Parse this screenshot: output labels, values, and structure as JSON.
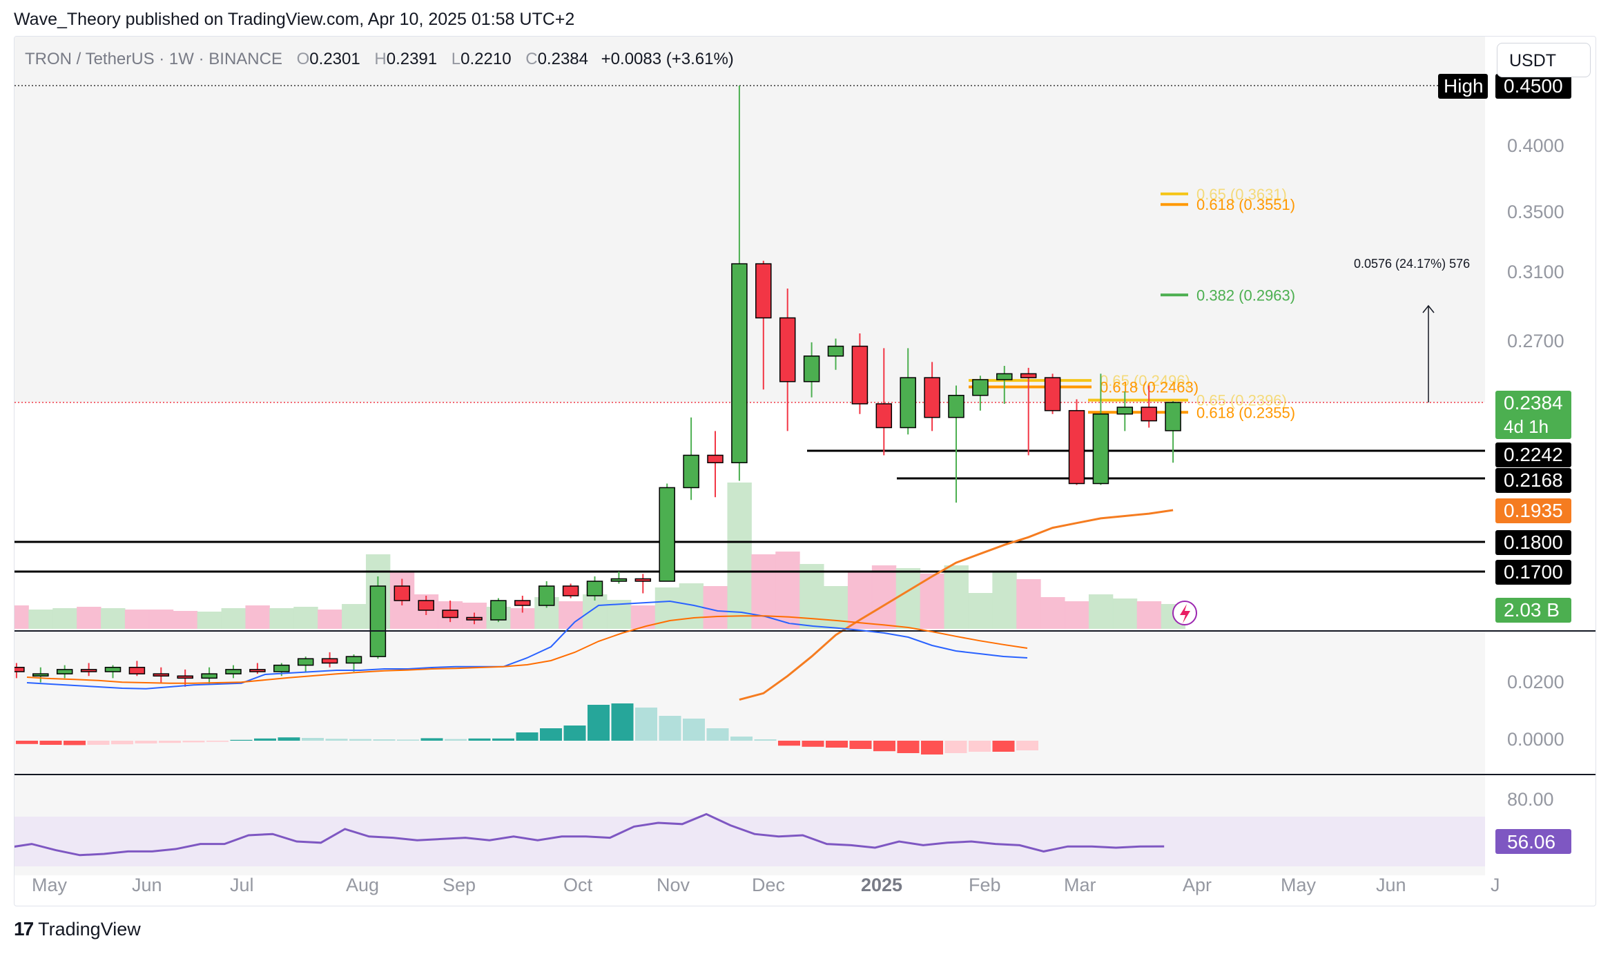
{
  "header": {
    "publisher_line": "Wave_Theory published on TradingView.com, Apr 10, 2025 01:58 UTC+2"
  },
  "symbol": {
    "name": "TRON / TetherUS · 1W · BINANCE",
    "o_label": "O",
    "o": "0.2301",
    "h_label": "H",
    "h": "0.2391",
    "l_label": "L",
    "l": "0.2210",
    "c_label": "C",
    "c": "0.2384",
    "change": "+0.0083 (+3.61%)"
  },
  "currency_button": "USDT",
  "footer": {
    "brand": "TradingView",
    "logo_mark": "17"
  },
  "colors": {
    "up": "#4caf50",
    "down": "#f23645",
    "ema": "#f57c20",
    "macd": "#2962ff",
    "signal": "#ff6d00",
    "rsi": "#7e57c2",
    "fib_gold": "#f5c518",
    "fib_orange": "#ff9800",
    "fib_green": "#4caf50",
    "vol_up": "#c8e6c9",
    "vol_down": "#f8bbd0",
    "hist_up": "#26a69a",
    "hist_up_light": "#b2dfdb",
    "hist_down": "#ff5252",
    "hist_down_light": "#ffcdd2"
  },
  "chart_data": [
    {
      "type": "candlestick",
      "timeframe": "1W",
      "x_labels": [
        "May",
        "Jun",
        "Jul",
        "Aug",
        "Sep",
        "Oct",
        "Nov",
        "Dec",
        "2025",
        "Feb",
        "Mar",
        "Apr",
        "May",
        "Jun",
        "J"
      ],
      "y_ticks": [
        "0.4000",
        "0.3500",
        "0.3100",
        "0.2700"
      ],
      "candles": [
        {
          "o": 0.123,
          "h": 0.131,
          "l": 0.117,
          "c": 0.128
        },
        {
          "o": 0.128,
          "h": 0.13,
          "l": 0.123,
          "c": 0.126
        },
        {
          "o": 0.124,
          "h": 0.128,
          "l": 0.121,
          "c": 0.125
        },
        {
          "o": 0.125,
          "h": 0.129,
          "l": 0.123,
          "c": 0.127
        },
        {
          "o": 0.127,
          "h": 0.13,
          "l": 0.124,
          "c": 0.126
        },
        {
          "o": 0.126,
          "h": 0.129,
          "l": 0.123,
          "c": 0.128
        },
        {
          "o": 0.128,
          "h": 0.131,
          "l": 0.124,
          "c": 0.125
        },
        {
          "o": 0.125,
          "h": 0.128,
          "l": 0.121,
          "c": 0.124
        },
        {
          "o": 0.124,
          "h": 0.127,
          "l": 0.119,
          "c": 0.123
        },
        {
          "o": 0.123,
          "h": 0.128,
          "l": 0.12,
          "c": 0.125
        },
        {
          "o": 0.125,
          "h": 0.129,
          "l": 0.123,
          "c": 0.127
        },
        {
          "o": 0.127,
          "h": 0.13,
          "l": 0.125,
          "c": 0.126
        },
        {
          "o": 0.126,
          "h": 0.13,
          "l": 0.124,
          "c": 0.129
        },
        {
          "o": 0.129,
          "h": 0.133,
          "l": 0.126,
          "c": 0.132
        },
        {
          "o": 0.132,
          "h": 0.135,
          "l": 0.128,
          "c": 0.13
        },
        {
          "o": 0.13,
          "h": 0.134,
          "l": 0.126,
          "c": 0.133
        },
        {
          "o": 0.133,
          "h": 0.168,
          "l": 0.132,
          "c": 0.164
        },
        {
          "o": 0.164,
          "h": 0.167,
          "l": 0.156,
          "c": 0.158
        },
        {
          "o": 0.158,
          "h": 0.16,
          "l": 0.152,
          "c": 0.154
        },
        {
          "o": 0.154,
          "h": 0.158,
          "l": 0.149,
          "c": 0.151
        },
        {
          "o": 0.151,
          "h": 0.153,
          "l": 0.148,
          "c": 0.15
        },
        {
          "o": 0.15,
          "h": 0.159,
          "l": 0.149,
          "c": 0.158
        },
        {
          "o": 0.158,
          "h": 0.16,
          "l": 0.153,
          "c": 0.156
        },
        {
          "o": 0.156,
          "h": 0.166,
          "l": 0.155,
          "c": 0.164
        },
        {
          "o": 0.164,
          "h": 0.165,
          "l": 0.159,
          "c": 0.16
        },
        {
          "o": 0.16,
          "h": 0.168,
          "l": 0.158,
          "c": 0.166
        },
        {
          "o": 0.166,
          "h": 0.17,
          "l": 0.165,
          "c": 0.167
        },
        {
          "o": 0.167,
          "h": 0.169,
          "l": 0.161,
          "c": 0.166
        },
        {
          "o": 0.166,
          "h": 0.213,
          "l": 0.166,
          "c": 0.21
        },
        {
          "o": 0.21,
          "h": 0.234,
          "l": 0.201,
          "c": 0.223
        },
        {
          "o": 0.223,
          "h": 0.23,
          "l": 0.203,
          "c": 0.221
        },
        {
          "o": 0.221,
          "h": 0.45,
          "l": 0.215,
          "c": 0.315
        },
        {
          "o": 0.315,
          "h": 0.317,
          "l": 0.245,
          "c": 0.283
        },
        {
          "o": 0.283,
          "h": 0.3,
          "l": 0.23,
          "c": 0.249
        },
        {
          "o": 0.249,
          "h": 0.269,
          "l": 0.241,
          "c": 0.262
        },
        {
          "o": 0.262,
          "h": 0.271,
          "l": 0.255,
          "c": 0.267
        },
        {
          "o": 0.267,
          "h": 0.274,
          "l": 0.235,
          "c": 0.238
        },
        {
          "o": 0.238,
          "h": 0.266,
          "l": 0.223,
          "c": 0.231
        },
        {
          "o": 0.231,
          "h": 0.266,
          "l": 0.229,
          "c": 0.251
        },
        {
          "o": 0.251,
          "h": 0.259,
          "l": 0.23,
          "c": 0.234
        },
        {
          "o": 0.234,
          "h": 0.247,
          "l": 0.199,
          "c": 0.242
        },
        {
          "o": 0.242,
          "h": 0.252,
          "l": 0.236,
          "c": 0.25
        },
        {
          "o": 0.25,
          "h": 0.257,
          "l": 0.238,
          "c": 0.253
        },
        {
          "o": 0.253,
          "h": 0.256,
          "l": 0.223,
          "c": 0.251
        },
        {
          "o": 0.251,
          "h": 0.253,
          "l": 0.235,
          "c": 0.236
        },
        {
          "o": 0.236,
          "h": 0.24,
          "l": 0.212,
          "c": 0.213
        },
        {
          "o": 0.213,
          "h": 0.253,
          "l": 0.212,
          "c": 0.235
        },
        {
          "o": 0.235,
          "h": 0.244,
          "l": 0.23,
          "c": 0.237
        },
        {
          "o": 0.237,
          "h": 0.247,
          "l": 0.231,
          "c": 0.233
        },
        {
          "o": 0.2301,
          "h": 0.2391,
          "l": 0.221,
          "c": 0.2384
        }
      ],
      "price_labels": [
        {
          "text": "0.4500",
          "tag": "High"
        },
        {
          "text": "0.2384",
          "sub": "4d 1h",
          "color": "#4caf50"
        },
        {
          "text": "0.2242",
          "color": "#000000"
        },
        {
          "text": "0.2168",
          "color": "#000000"
        },
        {
          "text": "0.1935",
          "color": "#f57c20"
        },
        {
          "text": "0.1800",
          "color": "#000000"
        },
        {
          "text": "0.1700",
          "color": "#000000"
        },
        {
          "text": "2.03 B",
          "color": "#4caf50"
        }
      ],
      "horizontal_levels": [
        0.2242,
        0.2168,
        0.18,
        0.17
      ],
      "fib_levels": [
        {
          "label": "0.65 (0.3631)",
          "value": 0.3631,
          "color": "#f5c518"
        },
        {
          "label": "0.618 (0.3551)",
          "value": 0.3551,
          "color": "#ff9800"
        },
        {
          "label": "0.382 (0.2963)",
          "value": 0.2963,
          "color": "#4caf50"
        },
        {
          "label": "0.65 (0.2496)",
          "value": 0.2496,
          "color": "#f5c518"
        },
        {
          "label": "0.618 (0.2463)",
          "value": 0.2463,
          "color": "#ff9800"
        },
        {
          "label": "0.65 (0.2396)",
          "value": 0.2396,
          "color": "#f5c518"
        },
        {
          "label": "0.618 (0.2355)",
          "value": 0.2355,
          "color": "#ff9800"
        }
      ],
      "measure_annotation": "0.0576 (24.17%) 576",
      "ema": [
        0.113,
        0.116,
        0.124,
        0.133,
        0.143,
        0.15,
        0.156,
        0.162,
        0.168,
        0.173,
        0.176,
        0.179,
        0.182,
        0.186,
        0.188,
        0.19,
        0.191,
        0.192,
        0.1935
      ]
    },
    {
      "type": "macd",
      "y_ticks": [
        "0.0200",
        "0.0000"
      ],
      "macd": [
        0.006,
        0.0055,
        0.005,
        0.0045,
        0.004,
        0.0038,
        0.0045,
        0.0052,
        0.0055,
        0.0058,
        0.009,
        0.0095,
        0.01,
        0.0105,
        0.0105,
        0.011,
        0.011,
        0.0115,
        0.0118,
        0.0118,
        0.0118,
        0.015,
        0.019,
        0.028,
        0.034,
        0.0345,
        0.035,
        0.0355,
        0.034,
        0.032,
        0.0315,
        0.03,
        0.0275,
        0.0265,
        0.0258,
        0.025,
        0.024,
        0.0225,
        0.0195,
        0.0175,
        0.0165,
        0.0155,
        0.015
      ],
      "signal": [
        0.008,
        0.0075,
        0.0072,
        0.0068,
        0.0062,
        0.006,
        0.0058,
        0.0058,
        0.006,
        0.0062,
        0.007,
        0.0078,
        0.0085,
        0.0092,
        0.0098,
        0.0103,
        0.0106,
        0.011,
        0.0112,
        0.0115,
        0.0118,
        0.0125,
        0.014,
        0.017,
        0.021,
        0.024,
        0.0265,
        0.0285,
        0.0295,
        0.03,
        0.0302,
        0.0302,
        0.0298,
        0.0292,
        0.0285,
        0.0277,
        0.0269,
        0.026,
        0.0245,
        0.0228,
        0.0212,
        0.0198,
        0.0185
      ],
      "histogram": [
        -0.0012,
        -0.0015,
        -0.0016,
        -0.0015,
        -0.0013,
        -0.001,
        -0.0008,
        -0.0006,
        -0.0004,
        0.0003,
        0.0008,
        0.0012,
        0.001,
        0.0007,
        0.0006,
        0.0005,
        0.0004,
        0.0009,
        0.0006,
        0.0008,
        0.0008,
        0.003,
        0.0045,
        0.0055,
        0.013,
        0.0135,
        0.012,
        0.009,
        0.008,
        0.0045,
        0.0015,
        0.0005,
        -0.0018,
        -0.0022,
        -0.0025,
        -0.003,
        -0.0038,
        -0.0045,
        -0.005,
        -0.0045,
        -0.004,
        -0.004,
        -0.0035
      ]
    },
    {
      "type": "rsi",
      "y_ticks": [
        "80.00"
      ],
      "current": "56.06",
      "values": [
        55,
        58,
        53,
        49,
        50,
        52,
        52,
        54,
        58,
        58,
        65,
        66,
        60,
        59,
        70,
        64,
        63,
        61,
        62,
        63,
        61,
        64,
        61,
        64,
        64,
        63,
        72,
        75,
        74,
        82,
        73,
        66,
        64,
        65,
        58,
        57,
        55,
        60,
        57,
        59,
        60,
        58,
        57,
        52,
        56,
        56,
        55,
        56,
        56.06
      ]
    }
  ]
}
